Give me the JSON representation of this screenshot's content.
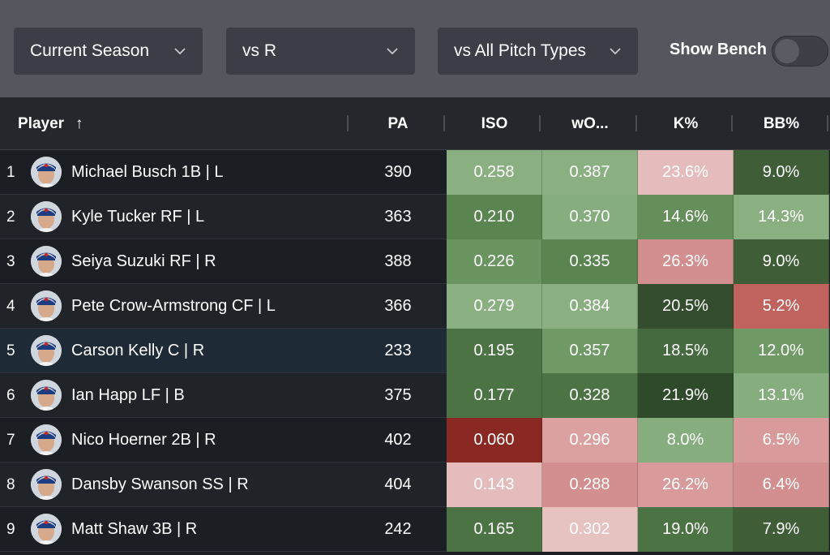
{
  "filters": {
    "season": "Current Season",
    "hand": "vs R",
    "pitch": "vs All Pitch Types",
    "bench_label": "Show Bench",
    "bench_on": false
  },
  "table": {
    "columns": {
      "player": "Player",
      "pa": "PA",
      "iso": "ISO",
      "woba": "wO...",
      "k": "K%",
      "bb": "BB%"
    },
    "sort_indicator": "↑",
    "rows": [
      {
        "rank": "1",
        "name": "Michael Busch 1B | L",
        "pa": "390",
        "iso": "0.258",
        "woba": "0.387",
        "k": "23.6%",
        "bb": "9.0%",
        "colors": {
          "iso": "#8ab081",
          "woba": "#8ab081",
          "k": "#e4bcbb",
          "bb": "#3f5e38"
        }
      },
      {
        "rank": "2",
        "name": "Kyle Tucker RF | L",
        "pa": "363",
        "iso": "0.210",
        "woba": "0.370",
        "k": "14.6%",
        "bb": "14.3%",
        "colors": {
          "iso": "#5a8450",
          "woba": "#86ad7d",
          "k": "#648e5a",
          "bb": "#8ab081"
        }
      },
      {
        "rank": "3",
        "name": "Seiya Suzuki RF | R",
        "pa": "388",
        "iso": "0.226",
        "woba": "0.335",
        "k": "26.3%",
        "bb": "9.0%",
        "colors": {
          "iso": "#6a9561",
          "woba": "#5a8450",
          "k": "#d38f8f",
          "bb": "#3f5e38"
        }
      },
      {
        "rank": "4",
        "name": "Pete Crow-Armstrong CF | L",
        "pa": "366",
        "iso": "0.279",
        "woba": "0.384",
        "k": "20.5%",
        "bb": "5.2%",
        "colors": {
          "iso": "#8ab081",
          "woba": "#8ab081",
          "k": "#334d2e",
          "bb": "#c0625e"
        }
      },
      {
        "rank": "5",
        "name": "Carson Kelly C | R",
        "pa": "233",
        "iso": "0.195",
        "woba": "0.357",
        "k": "18.5%",
        "bb": "12.0%",
        "colors": {
          "iso": "#4c7343",
          "woba": "#6f9a66",
          "k": "#466a3f",
          "bb": "#6f9a66"
        }
      },
      {
        "rank": "6",
        "name": "Ian Happ LF | B",
        "pa": "375",
        "iso": "0.177",
        "woba": "0.328",
        "k": "21.9%",
        "bb": "13.1%",
        "colors": {
          "iso": "#4c7343",
          "woba": "#4c7343",
          "k": "#2f4a2b",
          "bb": "#86ad7d"
        }
      },
      {
        "rank": "7",
        "name": "Nico Hoerner 2B | R",
        "pa": "402",
        "iso": "0.060",
        "woba": "0.296",
        "k": "8.0%",
        "bb": "6.5%",
        "colors": {
          "iso": "#8a2824",
          "woba": "#dba0a0",
          "k": "#86ad7d",
          "bb": "#d89a9a"
        }
      },
      {
        "rank": "8",
        "name": "Dansby Swanson SS | R",
        "pa": "404",
        "iso": "0.143",
        "woba": "0.288",
        "k": "26.2%",
        "bb": "6.4%",
        "colors": {
          "iso": "#e3bcbb",
          "woba": "#d38f8f",
          "k": "#d89a9a",
          "bb": "#d38f8f"
        }
      },
      {
        "rank": "9",
        "name": "Matt Shaw 3B | R",
        "pa": "242",
        "iso": "0.165",
        "woba": "0.302",
        "k": "19.0%",
        "bb": "7.9%",
        "colors": {
          "iso": "#4c7343",
          "woba": "#e6c2c1",
          "k": "#4c7343",
          "bb": "#3f5e38"
        }
      }
    ]
  },
  "theme": {
    "filter_bar": "#55575f",
    "table_bg": "#1b1e22",
    "header_bg": "#24272b"
  }
}
